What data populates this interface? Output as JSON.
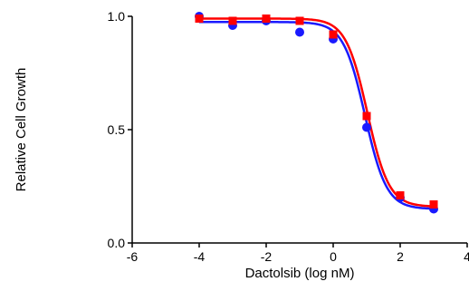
{
  "chart_data": {
    "type": "scatter",
    "title": "",
    "xlabel": "Dactolsib (log nM)",
    "ylabel": "Relative Cell Growth",
    "xlim": [
      -6,
      4
    ],
    "ylim": [
      0.0,
      1.0
    ],
    "x_ticks": [
      -6,
      -4,
      -2,
      0,
      2,
      4
    ],
    "x_tick_labels": [
      "-6",
      "-4",
      "-2",
      "0",
      "2",
      "4"
    ],
    "y_ticks": [
      0.0,
      0.5,
      1.0
    ],
    "y_tick_labels": [
      "0.0",
      "0.5",
      "1.0"
    ],
    "grid": false,
    "legend": "none",
    "series": [
      {
        "color": "#1a1aff",
        "marker": "circle",
        "x": [
          -4,
          -3,
          -2,
          -1,
          0,
          1,
          2,
          3
        ],
        "y": [
          1.0,
          0.96,
          0.98,
          0.93,
          0.9,
          0.51,
          0.2,
          0.15
        ],
        "fit": {
          "top": 0.975,
          "bottom": 0.15,
          "log_ic50": 0.95,
          "hill": 1.35
        }
      },
      {
        "color": "#ff0000",
        "marker": "square",
        "x": [
          -4,
          -3,
          -2,
          -1,
          0,
          1,
          2,
          3
        ],
        "y": [
          0.99,
          0.98,
          0.99,
          0.98,
          0.92,
          0.56,
          0.21,
          0.17
        ],
        "fit": {
          "top": 0.99,
          "bottom": 0.16,
          "log_ic50": 1.02,
          "hill": 1.35
        }
      }
    ]
  }
}
